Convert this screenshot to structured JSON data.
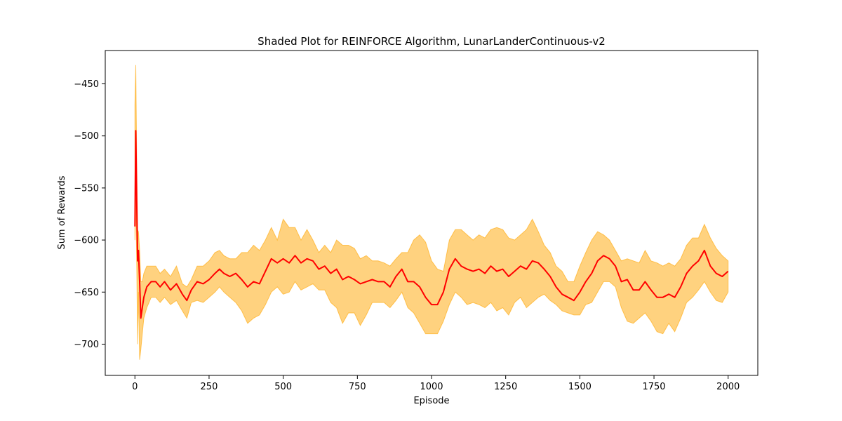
{
  "chart_data": {
    "type": "line",
    "title": "Shaded Plot for REINFORCE Algorithm, LunarLanderContinuous-v2",
    "xlabel": "Episode",
    "ylabel": "Sum of Rewards",
    "xlim": [
      -100,
      2100
    ],
    "ylim": [
      -730,
      -418
    ],
    "xticks": [
      0,
      250,
      500,
      750,
      1000,
      1250,
      1500,
      1750,
      2000
    ],
    "yticks": [
      -450,
      -500,
      -550,
      -600,
      -650,
      -700
    ],
    "grid": false,
    "colors": {
      "mean": "#ff0000",
      "band": "#ffa500",
      "band_opacity": 0.5
    },
    "series": [
      {
        "role": "mean",
        "x": [
          0,
          3,
          6,
          9,
          12,
          16,
          20,
          25,
          30,
          40,
          55,
          70,
          85,
          100,
          120,
          140,
          160,
          175,
          190,
          210,
          230,
          250,
          270,
          285,
          300,
          320,
          340,
          360,
          380,
          400,
          420,
          440,
          460,
          480,
          500,
          520,
          540,
          560,
          580,
          600,
          620,
          640,
          660,
          680,
          700,
          720,
          740,
          760,
          780,
          800,
          820,
          840,
          860,
          880,
          900,
          920,
          940,
          960,
          980,
          1000,
          1020,
          1040,
          1060,
          1080,
          1100,
          1120,
          1140,
          1160,
          1180,
          1200,
          1220,
          1240,
          1260,
          1280,
          1300,
          1320,
          1340,
          1360,
          1380,
          1400,
          1420,
          1440,
          1460,
          1480,
          1500,
          1520,
          1540,
          1560,
          1580,
          1600,
          1620,
          1640,
          1660,
          1680,
          1700,
          1720,
          1740,
          1760,
          1780,
          1800,
          1820,
          1840,
          1860,
          1880,
          1900,
          1920,
          1940,
          1960,
          1980,
          2000
        ],
        "y": [
          -587,
          -495,
          -560,
          -620,
          -610,
          -640,
          -675,
          -665,
          -655,
          -645,
          -640,
          -640,
          -645,
          -640,
          -648,
          -642,
          -652,
          -658,
          -648,
          -640,
          -642,
          -638,
          -632,
          -628,
          -632,
          -635,
          -632,
          -638,
          -645,
          -640,
          -642,
          -630,
          -618,
          -622,
          -618,
          -622,
          -615,
          -622,
          -618,
          -620,
          -628,
          -625,
          -632,
          -628,
          -638,
          -635,
          -638,
          -642,
          -640,
          -638,
          -640,
          -640,
          -645,
          -635,
          -628,
          -640,
          -640,
          -645,
          -655,
          -662,
          -662,
          -650,
          -628,
          -618,
          -625,
          -628,
          -630,
          -628,
          -632,
          -625,
          -630,
          -628,
          -635,
          -630,
          -625,
          -628,
          -620,
          -622,
          -628,
          -635,
          -645,
          -652,
          -655,
          -658,
          -650,
          -640,
          -632,
          -620,
          -615,
          -618,
          -625,
          -640,
          -638,
          -648,
          -648,
          -640,
          -648,
          -655,
          -655,
          -652,
          -655,
          -645,
          -632,
          -625,
          -620,
          -610,
          -625,
          -632,
          -635,
          -630
        ]
      },
      {
        "role": "upper",
        "x": [
          0,
          3,
          6,
          9,
          12,
          16,
          20,
          25,
          30,
          40,
          55,
          70,
          85,
          100,
          120,
          140,
          160,
          175,
          190,
          210,
          230,
          250,
          270,
          285,
          300,
          320,
          340,
          360,
          380,
          400,
          420,
          440,
          460,
          480,
          500,
          520,
          540,
          560,
          580,
          600,
          620,
          640,
          660,
          680,
          700,
          720,
          740,
          760,
          780,
          800,
          820,
          840,
          860,
          880,
          900,
          920,
          940,
          960,
          980,
          1000,
          1020,
          1040,
          1060,
          1080,
          1100,
          1120,
          1140,
          1160,
          1180,
          1200,
          1220,
          1240,
          1260,
          1280,
          1300,
          1320,
          1340,
          1360,
          1380,
          1400,
          1420,
          1440,
          1460,
          1480,
          1500,
          1520,
          1540,
          1560,
          1580,
          1600,
          1620,
          1640,
          1660,
          1680,
          1700,
          1720,
          1740,
          1760,
          1780,
          1800,
          1820,
          1840,
          1860,
          1880,
          1900,
          1920,
          1940,
          1960,
          1980,
          2000
        ],
        "y": [
          -470,
          -432,
          -520,
          -590,
          -592,
          -610,
          -640,
          -640,
          -632,
          -625,
          -625,
          -625,
          -632,
          -628,
          -635,
          -625,
          -642,
          -645,
          -638,
          -625,
          -625,
          -620,
          -612,
          -610,
          -615,
          -618,
          -618,
          -612,
          -612,
          -605,
          -610,
          -600,
          -588,
          -600,
          -580,
          -588,
          -588,
          -600,
          -590,
          -600,
          -612,
          -605,
          -612,
          -600,
          -605,
          -605,
          -608,
          -618,
          -615,
          -620,
          -620,
          -622,
          -625,
          -618,
          -612,
          -612,
          -600,
          -595,
          -602,
          -620,
          -628,
          -630,
          -600,
          -590,
          -590,
          -595,
          -600,
          -595,
          -598,
          -590,
          -588,
          -590,
          -598,
          -600,
          -595,
          -590,
          -580,
          -592,
          -605,
          -612,
          -625,
          -630,
          -640,
          -640,
          -625,
          -612,
          -600,
          -592,
          -595,
          -600,
          -610,
          -620,
          -618,
          -620,
          -622,
          -610,
          -620,
          -622,
          -625,
          -622,
          -625,
          -618,
          -605,
          -598,
          -598,
          -585,
          -598,
          -608,
          -615,
          -620
        ]
      },
      {
        "role": "lower",
        "x": [
          0,
          3,
          6,
          9,
          12,
          16,
          20,
          25,
          30,
          40,
          55,
          70,
          85,
          100,
          120,
          140,
          160,
          175,
          190,
          210,
          230,
          250,
          270,
          285,
          300,
          320,
          340,
          360,
          380,
          400,
          420,
          440,
          460,
          480,
          500,
          520,
          540,
          560,
          580,
          600,
          620,
          640,
          660,
          680,
          700,
          720,
          740,
          760,
          780,
          800,
          820,
          840,
          860,
          880,
          900,
          920,
          940,
          960,
          980,
          1000,
          1020,
          1040,
          1060,
          1080,
          1100,
          1120,
          1140,
          1160,
          1180,
          1200,
          1220,
          1240,
          1260,
          1280,
          1300,
          1320,
          1340,
          1360,
          1380,
          1400,
          1420,
          1440,
          1460,
          1480,
          1500,
          1520,
          1540,
          1560,
          1580,
          1600,
          1620,
          1640,
          1660,
          1680,
          1700,
          1720,
          1740,
          1760,
          1780,
          1800,
          1820,
          1840,
          1860,
          1880,
          1900,
          1920,
          1940,
          1960,
          1980,
          2000
        ],
        "y": [
          -600,
          -560,
          -620,
          -700,
          -650,
          -715,
          -705,
          -690,
          -675,
          -665,
          -655,
          -655,
          -660,
          -655,
          -662,
          -658,
          -668,
          -675,
          -660,
          -658,
          -660,
          -655,
          -650,
          -645,
          -650,
          -655,
          -660,
          -668,
          -680,
          -675,
          -672,
          -662,
          -650,
          -645,
          -652,
          -650,
          -640,
          -648,
          -645,
          -642,
          -648,
          -648,
          -660,
          -665,
          -680,
          -670,
          -670,
          -682,
          -672,
          -660,
          -660,
          -660,
          -665,
          -658,
          -650,
          -665,
          -670,
          -680,
          -690,
          -690,
          -690,
          -678,
          -662,
          -650,
          -655,
          -662,
          -660,
          -662,
          -665,
          -660,
          -668,
          -665,
          -672,
          -660,
          -655,
          -665,
          -660,
          -655,
          -652,
          -658,
          -662,
          -668,
          -670,
          -672,
          -672,
          -662,
          -660,
          -650,
          -640,
          -640,
          -645,
          -665,
          -678,
          -680,
          -675,
          -670,
          -678,
          -688,
          -690,
          -680,
          -688,
          -675,
          -660,
          -655,
          -648,
          -640,
          -650,
          -658,
          -660,
          -650
        ]
      }
    ]
  }
}
